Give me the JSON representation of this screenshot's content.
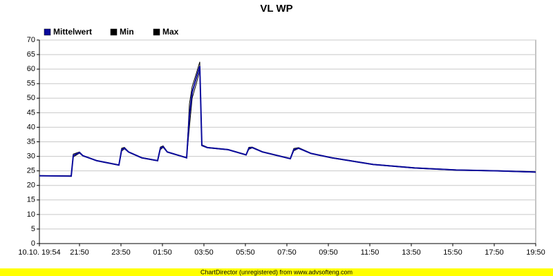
{
  "chart_data": {
    "type": "line",
    "title": "VL WP",
    "footer": "ChartDirector (unregistered) from www.advsofteng.com",
    "x": [
      0,
      92,
      98,
      116,
      126,
      166,
      230,
      238,
      246,
      258,
      296,
      342,
      350,
      358,
      370,
      426,
      434,
      442,
      454,
      464,
      470,
      486,
      546,
      598,
      606,
      616,
      646,
      726,
      736,
      750,
      786,
      846,
      966,
      1086,
      1206,
      1326,
      1436
    ],
    "series": [
      {
        "name": "Mittelwert",
        "color": "#0a0a9c",
        "values": [
          23.3,
          23.2,
          30.3,
          31.3,
          30.2,
          28.5,
          27.0,
          32.3,
          32.8,
          31.5,
          29.5,
          28.5,
          32.8,
          33.3,
          31.5,
          29.5,
          44,
          52,
          57,
          61,
          33.8,
          33.0,
          32.3,
          30.5,
          32.8,
          33.0,
          31.5,
          29.2,
          32.3,
          32.8,
          31.0,
          29.5,
          27.2,
          26.0,
          25.3,
          25.0,
          24.6
        ]
      },
      {
        "name": "Min",
        "color": "#000000",
        "values": [
          23.3,
          23.1,
          29.8,
          31.1,
          30.1,
          28.4,
          26.9,
          31.8,
          32.6,
          31.4,
          29.4,
          28.4,
          32.3,
          33.1,
          31.4,
          29.4,
          40,
          50,
          55,
          59.5,
          33.6,
          32.9,
          32.2,
          30.4,
          32.4,
          32.9,
          31.4,
          29.1,
          31.9,
          32.7,
          30.9,
          29.4,
          27.1,
          25.9,
          25.2,
          24.9,
          24.5
        ]
      },
      {
        "name": "Max",
        "color": "#000000",
        "values": [
          23.4,
          23.3,
          30.8,
          31.5,
          30.3,
          28.6,
          27.1,
          32.8,
          33.1,
          31.6,
          29.6,
          28.6,
          33.2,
          33.6,
          31.6,
          29.6,
          48,
          54,
          58.5,
          62.5,
          34.0,
          33.1,
          32.4,
          30.6,
          33.1,
          33.2,
          31.6,
          29.3,
          32.7,
          33.0,
          31.1,
          29.6,
          27.3,
          26.1,
          25.4,
          25.1,
          24.7
        ]
      }
    ],
    "xlim": [
      0,
      1436
    ],
    "xticks": [
      {
        "value": 0,
        "label": "10.10. 19:54"
      },
      {
        "value": 116,
        "label": "21:50"
      },
      {
        "value": 236,
        "label": "23:50"
      },
      {
        "value": 356,
        "label": "01:50"
      },
      {
        "value": 476,
        "label": "03:50"
      },
      {
        "value": 596,
        "label": "05:50"
      },
      {
        "value": 716,
        "label": "07:50"
      },
      {
        "value": 836,
        "label": "09:50"
      },
      {
        "value": 956,
        "label": "11:50"
      },
      {
        "value": 1076,
        "label": "13:50"
      },
      {
        "value": 1196,
        "label": "15:50"
      },
      {
        "value": 1316,
        "label": "17:50"
      },
      {
        "value": 1436,
        "label": "19:50"
      }
    ],
    "ylim": [
      0,
      70
    ],
    "yticks": [
      0,
      5,
      10,
      15,
      20,
      25,
      30,
      35,
      40,
      45,
      50,
      55,
      60,
      65,
      70
    ],
    "grid": true
  }
}
